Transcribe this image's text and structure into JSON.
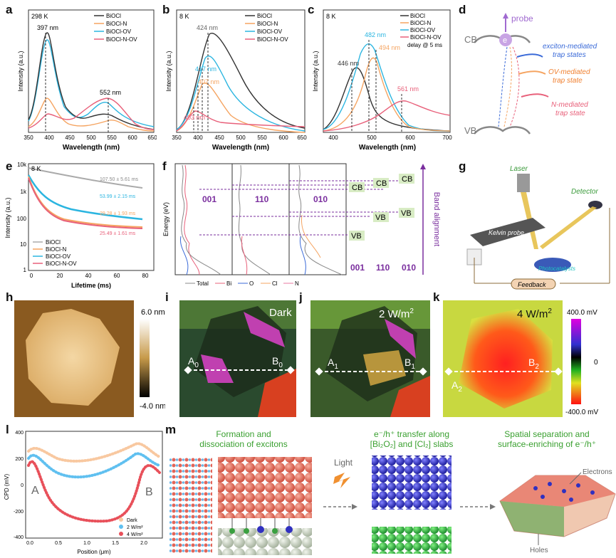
{
  "panel_labels": {
    "a": "a",
    "b": "b",
    "c": "c",
    "d": "d",
    "e": "e",
    "f": "f",
    "g": "g",
    "h": "h",
    "i": "i",
    "j": "j",
    "k": "k",
    "l": "l",
    "m": "m"
  },
  "legend_series": [
    "BiOCl",
    "BiOCl-N",
    "BiOCl-OV",
    "BiOCl-N-OV"
  ],
  "colors": {
    "BiOCl": "#333333",
    "BiOCl-N": "#f5a461",
    "BiOCl-OV": "#2bb5e0",
    "BiOCl-N-OV": "#e8607a",
    "purple": "#7a2e9e"
  },
  "a": {
    "temp": "298 K",
    "peak1": "397 nm",
    "peak2": "552 nm",
    "xlabel": "Wavelength (nm)",
    "ylabel": "Intensity (a.u.)",
    "xticks": [
      "350",
      "400",
      "450",
      "500",
      "550",
      "600",
      "650"
    ]
  },
  "b": {
    "temp": "8 K",
    "p1": "424 nm",
    "p2": "417 nm",
    "p3": "407 nm",
    "p4": "403 nm",
    "xlabel": "Wavelength (nm)",
    "ylabel": "Intensity (a.u.)",
    "xticks": [
      "350",
      "400",
      "450",
      "500",
      "550",
      "600",
      "650"
    ]
  },
  "c": {
    "temp": "8 K",
    "p1": "482 nm",
    "p2": "494 nm",
    "p3": "446 nm",
    "p4": "561 nm",
    "delay": "delay @ 5 ms",
    "xlabel": "Wavelength (nm)",
    "ylabel": "Intensity (a.u.)",
    "xticks": [
      "400",
      "500",
      "600",
      "700"
    ]
  },
  "d": {
    "probe": "probe",
    "cb": "CB",
    "vb": "VB",
    "e": "e",
    "t1": "exciton-mediated",
    "t1b": "trap states",
    "t2": "OV-mediated",
    "t2b": "trap state",
    "t3": "N-mediated",
    "t3b": "trap state"
  },
  "e": {
    "temp": "8 K",
    "l1": "107.50 ± 5.61 ms",
    "l2": "53.99 ± 2.15 ms",
    "l3": "29.28 ± 1.93 ms",
    "l4": "25.49 ± 1.61 ms",
    "xlabel": "Lifetime (ms)",
    "ylabel": "Intensity (a.u.)",
    "yticks": [
      "10k",
      "1k",
      "100",
      "10",
      "1"
    ],
    "xticks": [
      "0",
      "20",
      "40",
      "60",
      "80"
    ]
  },
  "f": {
    "ylabel": "Energy (eV)",
    "f001": "001",
    "f110": "110",
    "f010": "010",
    "cb": "CB",
    "vb": "VB",
    "band": "Band alignment",
    "legend": [
      "Total",
      "Bi",
      "O",
      "Cl",
      "N"
    ]
  },
  "g": {
    "laser": "Laser",
    "detector": "Detector",
    "kelvin": "Kelvin probe",
    "photo": "Photocatalysts",
    "feedback": "Feedback"
  },
  "h": {
    "top": "6.0 nm",
    "bottom": "-4.0 nm"
  },
  "i": {
    "label": "Dark",
    "a": "A",
    "asub": "0",
    "b": "B",
    "bsub": "0"
  },
  "j": {
    "label": "2 W/m",
    "sup": "2",
    "a": "A",
    "asub": "1",
    "b": "B",
    "bsub": "1"
  },
  "k": {
    "label": "4 W/m",
    "sup": "2",
    "a": "A",
    "asub": "2",
    "b": "B",
    "bsub": "2",
    "top": "400.0 mV",
    "mid": "0",
    "bottom": "-400.0 mV"
  },
  "l": {
    "ylabel": "CPD (mV)",
    "xlabel": "Position (μm)",
    "a": "A",
    "b": "B",
    "yticks": [
      "400",
      "200",
      "0",
      "-200",
      "-400"
    ],
    "xticks": [
      "0.0",
      "0.5",
      "1.0",
      "1.5",
      "2.0"
    ],
    "legend": [
      "Dark",
      "2 W/m²",
      "4 W/m²"
    ]
  },
  "m": {
    "h1a": "Formation and",
    "h1b": "dissociation of excitons",
    "light": "Light",
    "h2a": "e⁻/h⁺ transfer along",
    "h2b": "[Bi₂O₂] and [Cl₂] slabs",
    "h3a": "Spatial separation and",
    "h3b": "surface-enriching of e⁻/h⁺",
    "electrons": "Electrons",
    "holes": "Holes"
  }
}
